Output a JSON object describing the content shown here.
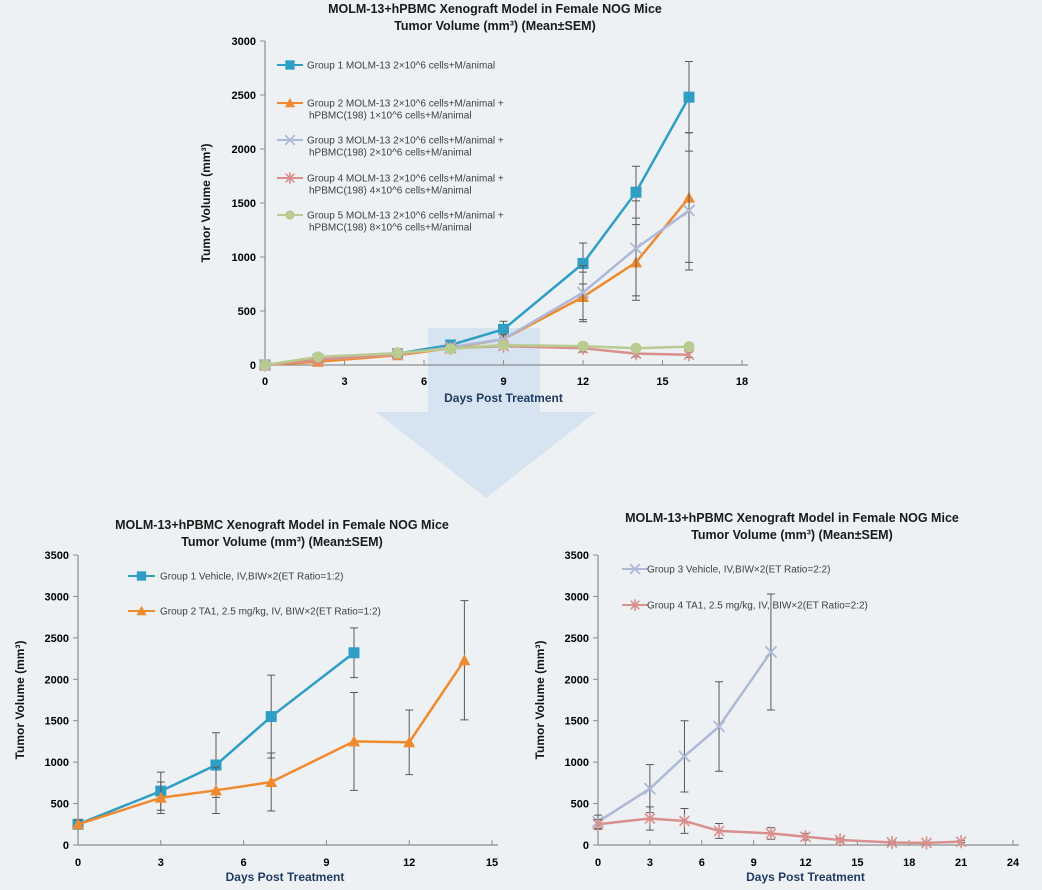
{
  "page": {
    "background": "#edf1f4"
  },
  "arrow": {
    "name": "down-arrow",
    "color": "#c7dcf0",
    "opacity": 0.6
  },
  "chart_data": [
    {
      "id": "top",
      "type": "line",
      "title": "MOLM-13+hPBMC Xenograft Model in Female NOG Mice",
      "subtitle": "Tumor Volume (mm³) (Mean±SEM)",
      "xlabel": "Days Post Treatment",
      "ylabel": "Tumor Volume (mm³)",
      "xlim": [
        0,
        18
      ],
      "ylim": [
        0,
        3000
      ],
      "xticks": [
        0,
        3,
        6,
        9,
        12,
        15,
        18
      ],
      "yticks": [
        0,
        500,
        1000,
        1500,
        2000,
        2500,
        3000
      ],
      "grid": false,
      "legend_position": "upper-left-inside",
      "error_bar_color": "#595959",
      "series": [
        {
          "name": "group-1-molm13",
          "legend_lines": [
            "Group 1 MOLM-13  2×10^6 cells+M/animal"
          ],
          "color": "#2E9EC5",
          "marker": "square",
          "x": [
            0,
            2,
            5,
            7,
            9,
            12,
            14,
            16
          ],
          "y": [
            0,
            55,
            105,
            185,
            330,
            940,
            1600,
            2480
          ],
          "err": [
            0,
            10,
            15,
            30,
            75,
            190,
            240,
            330
          ]
        },
        {
          "name": "group-2-molm13-hpbmc-1e6",
          "legend_lines": [
            "Group 2 MOLM-13  2×10^6 cells+M/animal +",
            "hPBMC(198) 1×10^6 cells+M/animal"
          ],
          "color": "#F08A2E",
          "marker": "triangle",
          "x": [
            0,
            2,
            5,
            7,
            9,
            12,
            14,
            16
          ],
          "y": [
            0,
            30,
            90,
            155,
            240,
            630,
            950,
            1550
          ],
          "err": [
            0,
            10,
            15,
            25,
            40,
            230,
            350,
            600
          ]
        },
        {
          "name": "group-3-molm13-hpbmc-2e6",
          "legend_lines": [
            "Group 3 MOLM-13  2×10^6 cells+M/animal +",
            "hPBMC(198) 2×10^6 cells+M/animal"
          ],
          "color": "#AEB9D8",
          "marker": "x",
          "x": [
            0,
            2,
            5,
            7,
            9,
            12,
            14,
            16
          ],
          "y": [
            0,
            50,
            100,
            165,
            240,
            670,
            1080,
            1430
          ],
          "err": [
            0,
            10,
            15,
            25,
            40,
            250,
            440,
            550
          ]
        },
        {
          "name": "group-4-molm13-hpbmc-4e6",
          "legend_lines": [
            "Group 4 MOLM-13  2×10^6 cells+M/animal +",
            "hPBMC(198) 4×10^6 cells+M/animal"
          ],
          "color": "#D9908D",
          "marker": "asterisk",
          "x": [
            0,
            2,
            5,
            7,
            9,
            12,
            14,
            16
          ],
          "y": [
            0,
            50,
            105,
            155,
            175,
            155,
            105,
            95
          ],
          "err": [
            0,
            8,
            12,
            20,
            30,
            35,
            30,
            25
          ]
        },
        {
          "name": "group-5-molm13-hpbmc-8e6",
          "legend_lines": [
            "Group 5 MOLM-13  2×10^6 cells+M/animal +",
            "hPBMC(198) 8×10^6 cells+M/animal"
          ],
          "color": "#B8CB90",
          "marker": "circle",
          "x": [
            0,
            2,
            5,
            7,
            9,
            12,
            14,
            16
          ],
          "y": [
            0,
            75,
            110,
            150,
            185,
            175,
            155,
            170
          ],
          "err": [
            0,
            8,
            12,
            18,
            28,
            32,
            28,
            28
          ]
        }
      ]
    },
    {
      "id": "bl",
      "type": "line",
      "title": "MOLM-13+hPBMC Xenograft Model in Female NOG Mice",
      "subtitle": "Tumor Volume (mm³) (Mean±SEM)",
      "xlabel": "Days Post Treatment",
      "ylabel": "Tumor Volume (mm³)",
      "xlim": [
        0,
        15
      ],
      "ylim": [
        0,
        3500
      ],
      "xticks": [
        0,
        3,
        6,
        9,
        12,
        15
      ],
      "yticks": [
        0,
        500,
        1000,
        1500,
        2000,
        2500,
        3000,
        3500
      ],
      "grid": false,
      "legend_position": "upper-left-inside",
      "error_bar_color": "#595959",
      "series": [
        {
          "name": "group-1-vehicle",
          "legend_lines": [
            "Group 1 Vehicle, IV,BIW×2(ET Ratio=1:2)"
          ],
          "color": "#2E9EC5",
          "marker": "square",
          "x": [
            0,
            3,
            5,
            7,
            10
          ],
          "y": [
            250,
            650,
            965,
            1550,
            2320
          ],
          "err": [
            50,
            230,
            390,
            500,
            300
          ]
        },
        {
          "name": "group-2-ta1",
          "legend_lines": [
            "Group 2 TA1, 2.5 mg/kg, IV, BIW×2(ET Ratio=1:2)"
          ],
          "color": "#F08A2E",
          "marker": "triangle",
          "x": [
            0,
            3,
            5,
            7,
            10,
            12,
            14
          ],
          "y": [
            250,
            570,
            660,
            760,
            1250,
            1240,
            2230
          ],
          "err": [
            50,
            190,
            280,
            350,
            590,
            390,
            720
          ]
        }
      ]
    },
    {
      "id": "br",
      "type": "line",
      "title": "MOLM-13+hPBMC Xenograft Model in Female NOG Mice",
      "subtitle": "Tumor Volume (mm³) (Mean±SEM)",
      "xlabel": "Days Post Treatment",
      "ylabel": "Tumor Volume (mm³)",
      "xlim": [
        0,
        24
      ],
      "ylim": [
        0,
        3500
      ],
      "xticks": [
        0,
        3,
        6,
        9,
        12,
        15,
        18,
        21,
        24
      ],
      "yticks": [
        0,
        500,
        1000,
        1500,
        2000,
        2500,
        3000,
        3500
      ],
      "grid": false,
      "legend_position": "upper-left-inside",
      "error_bar_color": "#595959",
      "series": [
        {
          "name": "group-3-vehicle",
          "legend_lines": [
            "Group 3 Vehicle, IV,BIW×2(ET Ratio=2:2)"
          ],
          "color": "#AEB9D8",
          "marker": "x",
          "x": [
            0,
            3,
            5,
            7,
            10
          ],
          "y": [
            280,
            680,
            1070,
            1430,
            2330
          ],
          "err": [
            80,
            290,
            430,
            540,
            700
          ]
        },
        {
          "name": "group-4-ta1",
          "legend_lines": [
            "Group 4 TA1, 2.5 mg/kg, IV, BIW×2(ET Ratio=2:2)"
          ],
          "color": "#D9908D",
          "marker": "asterisk",
          "x": [
            0,
            3,
            5,
            7,
            10,
            12,
            14,
            17,
            19,
            21
          ],
          "y": [
            250,
            320,
            290,
            170,
            140,
            100,
            60,
            30,
            25,
            40
          ],
          "err": [
            60,
            140,
            150,
            90,
            70,
            40,
            25,
            15,
            12,
            12
          ]
        }
      ]
    }
  ]
}
